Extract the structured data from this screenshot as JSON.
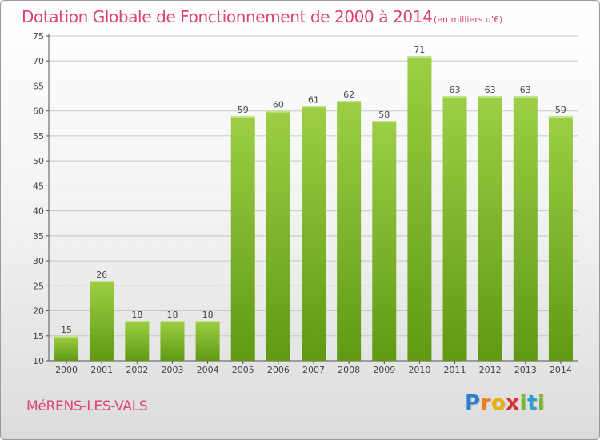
{
  "header": {
    "title": "Dotation Globale de Fonctionnement de 2000 à 2014",
    "subtitle": "(en milliers d'€)"
  },
  "footer": {
    "commune": "MéRENS-LES-VALS",
    "logo_letters": [
      "P",
      "r",
      "o",
      "x",
      "i",
      "t",
      "i"
    ]
  },
  "colors": {
    "title": "#e0407a",
    "bar_light": "#9ccf45",
    "bar_dark": "#5f9a12",
    "grid": "#c8c8c8",
    "axis_text": "#444444"
  },
  "chart_data": {
    "type": "bar",
    "title": "Dotation Globale de Fonctionnement de 2000 à 2014",
    "subtitle": "(en milliers d'€)",
    "categories": [
      "2000",
      "2001",
      "2002",
      "2003",
      "2004",
      "2005",
      "2006",
      "2007",
      "2008",
      "2009",
      "2010",
      "2011",
      "2012",
      "2013",
      "2014"
    ],
    "values": [
      15,
      26,
      18,
      18,
      18,
      59,
      60,
      61,
      62,
      58,
      71,
      63,
      63,
      63,
      59
    ],
    "ylim": [
      10,
      75
    ],
    "yticks": [
      10,
      15,
      20,
      25,
      30,
      35,
      40,
      45,
      50,
      55,
      60,
      65,
      70,
      75
    ],
    "grid": true,
    "data_labels": true
  }
}
